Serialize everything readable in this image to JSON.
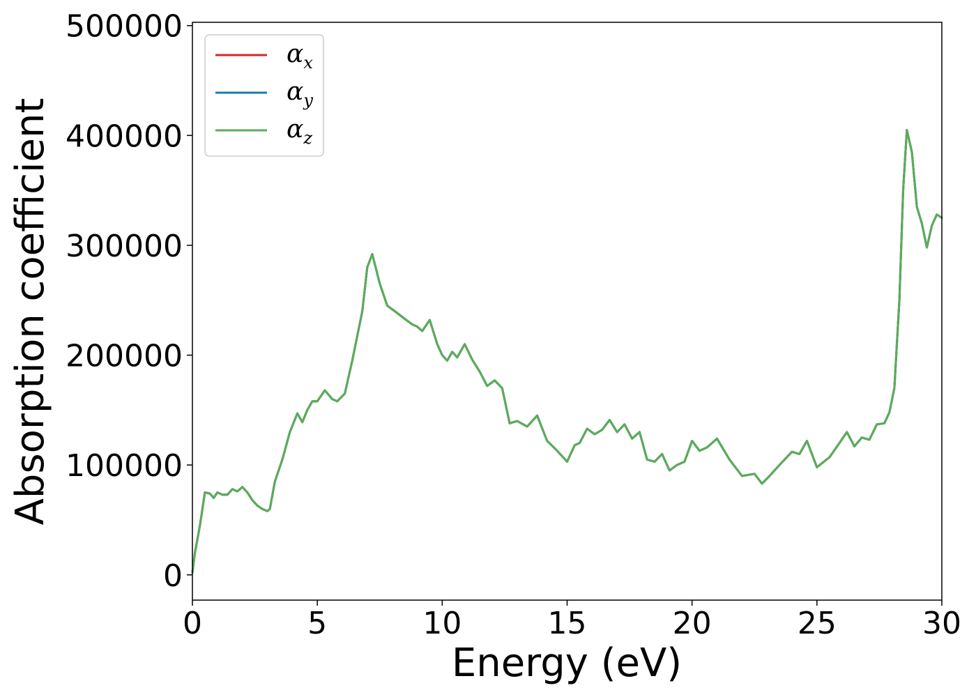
{
  "chart_data": {
    "type": "line",
    "title": "",
    "xlabel": "Energy (eV)",
    "ylabel": "Absorption coefficient",
    "xlim": [
      0,
      30
    ],
    "ylim": [
      -23000,
      503000
    ],
    "xticks": [
      0,
      5,
      10,
      15,
      20,
      25,
      30
    ],
    "xtick_labels": [
      "0",
      "5",
      "10",
      "15",
      "20",
      "25",
      "30"
    ],
    "yticks": [
      0,
      100000,
      200000,
      300000,
      400000,
      500000
    ],
    "ytick_labels": [
      "0",
      "100000",
      "200000",
      "300000",
      "400000",
      "500000"
    ],
    "grid": false,
    "legend_position": "top-left",
    "x": [
      0.0,
      0.1,
      0.3,
      0.5,
      0.7,
      0.85,
      1.0,
      1.2,
      1.4,
      1.6,
      1.8,
      2.0,
      2.2,
      2.4,
      2.6,
      2.8,
      3.0,
      3.1,
      3.3,
      3.6,
      3.9,
      4.2,
      4.4,
      4.6,
      4.8,
      5.0,
      5.3,
      5.6,
      5.8,
      6.1,
      6.4,
      6.8,
      7.0,
      7.2,
      7.5,
      7.8,
      8.1,
      8.5,
      8.8,
      9.0,
      9.2,
      9.5,
      9.8,
      10.0,
      10.2,
      10.4,
      10.6,
      10.9,
      11.2,
      11.5,
      11.8,
      12.1,
      12.4,
      12.7,
      13.0,
      13.4,
      13.8,
      14.2,
      14.6,
      15.0,
      15.3,
      15.5,
      15.8,
      16.1,
      16.4,
      16.7,
      17.0,
      17.3,
      17.6,
      17.9,
      18.2,
      18.5,
      18.8,
      19.1,
      19.4,
      19.7,
      20.0,
      20.3,
      20.6,
      21.0,
      21.5,
      22.0,
      22.5,
      22.8,
      23.1,
      23.5,
      24.0,
      24.3,
      24.6,
      25.0,
      25.5,
      25.9,
      26.2,
      26.5,
      26.8,
      27.1,
      27.4,
      27.7,
      27.9,
      28.1,
      28.3,
      28.45,
      28.6,
      28.8,
      29.0,
      29.2,
      29.4,
      29.6,
      29.8,
      30.0
    ],
    "series": [
      {
        "name": "α_x",
        "color": "#d62728",
        "values": [
          2000,
          20000,
          45000,
          75000,
          74000,
          70000,
          75000,
          73000,
          73000,
          78000,
          76000,
          80000,
          75000,
          68000,
          63000,
          60000,
          58000,
          60000,
          85000,
          105000,
          130000,
          147000,
          139000,
          150000,
          158000,
          158000,
          168000,
          160000,
          158000,
          165000,
          195000,
          240000,
          280000,
          292000,
          265000,
          245000,
          240000,
          233000,
          228000,
          226000,
          222000,
          232000,
          210000,
          200000,
          195000,
          203000,
          198000,
          210000,
          196000,
          185000,
          172000,
          177000,
          170000,
          138000,
          140000,
          135000,
          145000,
          122000,
          113000,
          103000,
          118000,
          120000,
          133000,
          128000,
          132000,
          141000,
          130000,
          137000,
          124000,
          130000,
          105000,
          103000,
          110000,
          95000,
          100000,
          103000,
          122000,
          113000,
          116000,
          124000,
          105000,
          90000,
          92000,
          83000,
          90000,
          100000,
          112000,
          110000,
          122000,
          98000,
          107000,
          120000,
          130000,
          117000,
          125000,
          123000,
          137000,
          138000,
          148000,
          170000,
          250000,
          350000,
          405000,
          385000,
          335000,
          320000,
          298000,
          318000,
          328000,
          325000
        ]
      },
      {
        "name": "α_y",
        "color": "#1f77b4",
        "values": [
          2000,
          20000,
          45000,
          75000,
          74000,
          70000,
          75000,
          73000,
          73000,
          78000,
          76000,
          80000,
          75000,
          68000,
          63000,
          60000,
          58000,
          60000,
          85000,
          105000,
          130000,
          147000,
          139000,
          150000,
          158000,
          158000,
          168000,
          160000,
          158000,
          165000,
          195000,
          240000,
          280000,
          292000,
          265000,
          245000,
          240000,
          233000,
          228000,
          226000,
          222000,
          232000,
          210000,
          200000,
          195000,
          203000,
          198000,
          210000,
          196000,
          185000,
          172000,
          177000,
          170000,
          138000,
          140000,
          135000,
          145000,
          122000,
          113000,
          103000,
          118000,
          120000,
          133000,
          128000,
          132000,
          141000,
          130000,
          137000,
          124000,
          130000,
          105000,
          103000,
          110000,
          95000,
          100000,
          103000,
          122000,
          113000,
          116000,
          124000,
          105000,
          90000,
          92000,
          83000,
          90000,
          100000,
          112000,
          110000,
          122000,
          98000,
          107000,
          120000,
          130000,
          117000,
          125000,
          123000,
          137000,
          138000,
          148000,
          170000,
          250000,
          350000,
          405000,
          385000,
          335000,
          320000,
          298000,
          318000,
          328000,
          325000
        ]
      },
      {
        "name": "α_z",
        "color": "#5aad58",
        "values": [
          2000,
          20000,
          45000,
          75000,
          74000,
          70000,
          75000,
          73000,
          73000,
          78000,
          76000,
          80000,
          75000,
          68000,
          63000,
          60000,
          58000,
          60000,
          85000,
          105000,
          130000,
          147000,
          139000,
          150000,
          158000,
          158000,
          168000,
          160000,
          158000,
          165000,
          195000,
          240000,
          280000,
          292000,
          265000,
          245000,
          240000,
          233000,
          228000,
          226000,
          222000,
          232000,
          210000,
          200000,
          195000,
          203000,
          198000,
          210000,
          196000,
          185000,
          172000,
          177000,
          170000,
          138000,
          140000,
          135000,
          145000,
          122000,
          113000,
          103000,
          118000,
          120000,
          133000,
          128000,
          132000,
          141000,
          130000,
          137000,
          124000,
          130000,
          105000,
          103000,
          110000,
          95000,
          100000,
          103000,
          122000,
          113000,
          116000,
          124000,
          105000,
          90000,
          92000,
          83000,
          90000,
          100000,
          112000,
          110000,
          122000,
          98000,
          107000,
          120000,
          130000,
          117000,
          125000,
          123000,
          137000,
          138000,
          148000,
          170000,
          250000,
          350000,
          405000,
          385000,
          335000,
          320000,
          298000,
          318000,
          328000,
          325000
        ]
      }
    ]
  }
}
